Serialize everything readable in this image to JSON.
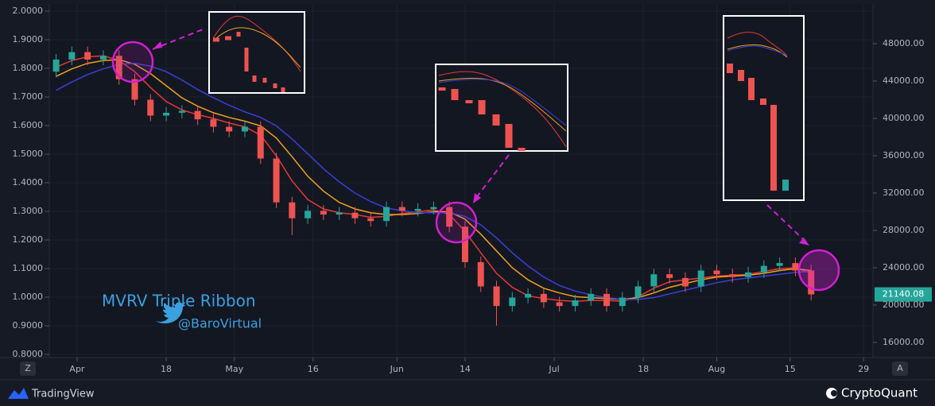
{
  "chart_data": {
    "type": "candlestick",
    "title": "MVRV Triple Ribbon",
    "author": "@BaroVirtual",
    "branding": [
      "TradingView",
      "CryptoQuant"
    ],
    "controls": [
      "Z",
      "A"
    ],
    "up_color": "#26a69a",
    "down_color": "#ef5350",
    "grid": true,
    "x": [
      -4,
      -1,
      2,
      5,
      8,
      11,
      14,
      17,
      20,
      23,
      26,
      29,
      32,
      35,
      38,
      41,
      44,
      47,
      50,
      53,
      56,
      59,
      62,
      65,
      68,
      71,
      74,
      77,
      80,
      83,
      86,
      89,
      92,
      95,
      98,
      101,
      104,
      107,
      110,
      113,
      116,
      119,
      122,
      125,
      128,
      131,
      134,
      137,
      140
    ],
    "open": [
      45000,
      46300,
      47100,
      46300,
      46700,
      44200,
      42000,
      40300,
      40600,
      40800,
      39900,
      39100,
      38600,
      39100,
      35700,
      31000,
      29300,
      30100,
      29700,
      29900,
      29300,
      29000,
      30500,
      30100,
      30300,
      30500,
      28400,
      24600,
      22000,
      19900,
      20800,
      21200,
      20300,
      19900,
      20500,
      21200,
      19900,
      20800,
      22000,
      23300,
      22900,
      22000,
      23700,
      23300,
      23000,
      23500,
      24200,
      24500,
      23700
    ],
    "high": [
      46900,
      47700,
      47700,
      47300,
      47300,
      44800,
      42600,
      41200,
      41400,
      41400,
      40500,
      39700,
      39700,
      39700,
      36300,
      31600,
      30700,
      30700,
      30500,
      30500,
      29900,
      31100,
      31100,
      30900,
      31100,
      31100,
      29000,
      25200,
      22600,
      21400,
      21800,
      21800,
      20900,
      21100,
      21800,
      21800,
      21400,
      22600,
      23900,
      23900,
      23500,
      24300,
      24300,
      23900,
      24100,
      24800,
      25100,
      25100,
      24300
    ],
    "low": [
      44400,
      45700,
      45700,
      45700,
      43600,
      41400,
      39700,
      39700,
      40000,
      39300,
      38500,
      38000,
      38000,
      35100,
      30400,
      27500,
      28700,
      29100,
      29100,
      28700,
      28400,
      28400,
      29500,
      29500,
      29700,
      27800,
      24000,
      21400,
      17800,
      19300,
      20200,
      19700,
      19300,
      19300,
      19900,
      19300,
      19300,
      20200,
      21400,
      22300,
      21400,
      21400,
      22700,
      22400,
      22400,
      22900,
      23600,
      23100,
      20500
    ],
    "close": [
      46300,
      47100,
      46300,
      46700,
      44200,
      42000,
      40300,
      40600,
      40800,
      39900,
      39100,
      38600,
      39100,
      35700,
      31000,
      29300,
      30100,
      29700,
      29900,
      29300,
      29000,
      30500,
      30100,
      30300,
      30500,
      28400,
      24600,
      22000,
      19900,
      20800,
      21200,
      20300,
      19900,
      20500,
      21200,
      19900,
      20800,
      22000,
      23300,
      22900,
      22000,
      23700,
      23300,
      23000,
      23500,
      24200,
      24500,
      23700,
      21140.08
    ],
    "series": [
      {
        "color": "#e53935",
        "axis": "y2",
        "values": [
          45500,
          46200,
          46600,
          46700,
          46200,
          45000,
          43300,
          41800,
          40900,
          40400,
          40000,
          39500,
          39100,
          38200,
          36000,
          33300,
          31300,
          30300,
          29900,
          29700,
          29400,
          29500,
          29800,
          30000,
          30200,
          29700,
          27900,
          25600,
          23400,
          21900,
          21000,
          20700,
          20500,
          20400,
          20500,
          20500,
          20400,
          20900,
          21800,
          22500,
          22700,
          22900,
          23100,
          23200,
          23300,
          23600,
          23900,
          24000,
          23400
        ]
      },
      {
        "color": "#f0a020",
        "axis": "y2",
        "values": [
          44500,
          45300,
          45900,
          46200,
          46300,
          45800,
          44800,
          43500,
          42200,
          41300,
          40600,
          40100,
          39700,
          39200,
          37900,
          35900,
          33800,
          32200,
          31000,
          30300,
          29900,
          29700,
          29700,
          29800,
          30000,
          30000,
          29200,
          27600,
          25800,
          24000,
          22700,
          21800,
          21300,
          20900,
          20800,
          20700,
          20600,
          20800,
          21300,
          21900,
          22300,
          22700,
          23000,
          23100,
          23200,
          23400,
          23700,
          23900,
          23700
        ]
      },
      {
        "color": "#3b3fd8",
        "axis": "y2",
        "values": [
          43000,
          43900,
          44700,
          45300,
          45800,
          45900,
          45600,
          45000,
          44100,
          43100,
          42200,
          41400,
          40700,
          40100,
          39200,
          37800,
          36200,
          34600,
          33200,
          32000,
          31100,
          30400,
          30100,
          29900,
          29900,
          29900,
          29500,
          28600,
          27200,
          25600,
          24200,
          23000,
          22100,
          21500,
          21100,
          20800,
          20600,
          20600,
          20800,
          21200,
          21600,
          22000,
          22400,
          22700,
          22900,
          23100,
          23300,
          23500,
          23600
        ]
      }
    ],
    "xlim": [
      -5.3,
      151.8
    ],
    "xticks": [
      {
        "value": 0,
        "label": "Apr"
      },
      {
        "value": 17,
        "label": "18"
      },
      {
        "value": 30,
        "label": "May"
      },
      {
        "value": 45,
        "label": "16"
      },
      {
        "value": 61,
        "label": "Jun"
      },
      {
        "value": 74,
        "label": "14"
      },
      {
        "value": 91,
        "label": "Jul"
      },
      {
        "value": 108,
        "label": "18"
      },
      {
        "value": 122,
        "label": "Aug"
      },
      {
        "value": 136,
        "label": "15"
      },
      {
        "value": 150,
        "label": "29"
      }
    ],
    "ylim": [
      0.8,
      2.0
    ],
    "yticks": [
      {
        "value": 0.8,
        "label": "0.8000"
      },
      {
        "value": 0.9,
        "label": "0.9000"
      },
      {
        "value": 1.0,
        "label": "1.0000"
      },
      {
        "value": 1.1,
        "label": "1.1000"
      },
      {
        "value": 1.2,
        "label": "1.2000"
      },
      {
        "value": 1.3,
        "label": "1.3000"
      },
      {
        "value": 1.4,
        "label": "1.4000"
      },
      {
        "value": 1.5,
        "label": "1.5000"
      },
      {
        "value": 1.6,
        "label": "1.6000"
      },
      {
        "value": 1.7,
        "label": "1.7000"
      },
      {
        "value": 1.8,
        "label": "1.8000"
      },
      {
        "value": 1.9,
        "label": "1.9000"
      },
      {
        "value": 2.0,
        "label": "2.0000"
      }
    ],
    "y2lim": [
      14720,
      51490
    ],
    "y2ticks": [
      {
        "value": 16000,
        "label": "16000.00"
      },
      {
        "value": 20000,
        "label": "20000.00"
      },
      {
        "value": 24000,
        "label": "24000.00"
      },
      {
        "value": 28000,
        "label": "28000.00"
      },
      {
        "value": 32000,
        "label": "32000.00"
      },
      {
        "value": 36000,
        "label": "36000.00"
      },
      {
        "value": 40000,
        "label": "40000.00"
      },
      {
        "value": 44000,
        "label": "44000.00"
      },
      {
        "value": 48000,
        "label": "48000.00"
      }
    ]
  }
}
